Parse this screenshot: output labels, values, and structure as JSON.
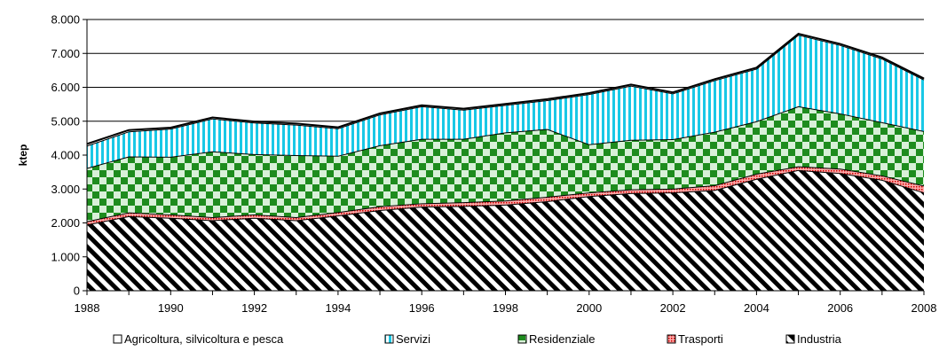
{
  "chart_data": {
    "type": "area",
    "stacked": true,
    "ylabel": "ktep",
    "xlabel": "",
    "title": "",
    "ylim": [
      0,
      8000
    ],
    "y_ticks": [
      "0",
      "1.000",
      "2.000",
      "3.000",
      "4.000",
      "5.000",
      "6.000",
      "7.000",
      "8.000"
    ],
    "x_ticks": [
      "1988",
      "1990",
      "1992",
      "1994",
      "1996",
      "1998",
      "2000",
      "2002",
      "2004",
      "2006",
      "2008"
    ],
    "grid": "horizontal",
    "legend_position": "bottom",
    "x": [
      1988,
      1989,
      1990,
      1991,
      1992,
      1993,
      1994,
      1995,
      1996,
      1997,
      1998,
      1999,
      2000,
      2001,
      2002,
      2003,
      2004,
      2005,
      2006,
      2007,
      2008
    ],
    "series": [
      {
        "name": "Industria",
        "color": "#000000",
        "pattern": "diagonal",
        "values": [
          1950,
          2200,
          2150,
          2080,
          2150,
          2080,
          2220,
          2380,
          2480,
          2500,
          2540,
          2640,
          2790,
          2880,
          2900,
          2970,
          3300,
          3560,
          3470,
          3270,
          2900
        ]
      },
      {
        "name": "Trasporti",
        "color": "#cc0000",
        "pattern": "dots",
        "values": [
          100,
          110,
          100,
          90,
          100,
          90,
          100,
          110,
          100,
          110,
          120,
          130,
          110,
          110,
          110,
          140,
          150,
          110,
          130,
          130,
          200
        ]
      },
      {
        "name": "Residenziale",
        "color": "#1e8c1e",
        "pattern": "checker",
        "values": [
          1570,
          1650,
          1700,
          1940,
          1780,
          1830,
          1660,
          1800,
          1900,
          1870,
          2010,
          2000,
          1420,
          1460,
          1460,
          1580,
          1550,
          1770,
          1630,
          1570,
          1610
        ]
      },
      {
        "name": "Servizi",
        "color": "#19c8e6",
        "pattern": "vertical",
        "values": [
          660,
          740,
          830,
          970,
          930,
          900,
          810,
          910,
          960,
          860,
          810,
          850,
          1480,
          1600,
          1350,
          1520,
          1550,
          2110,
          2020,
          1880,
          1520
        ]
      },
      {
        "name": "Agricoltura, silvicoltura e pesca",
        "color": "#000000",
        "pattern": "none",
        "values": [
          50,
          40,
          30,
          30,
          30,
          30,
          30,
          30,
          30,
          30,
          30,
          30,
          30,
          30,
          30,
          30,
          30,
          30,
          30,
          30,
          30
        ]
      }
    ],
    "legend_order": [
      "Agricoltura, silvicoltura e pesca",
      "Servizi",
      "Residenziale",
      "Trasporti",
      "Industria"
    ]
  }
}
